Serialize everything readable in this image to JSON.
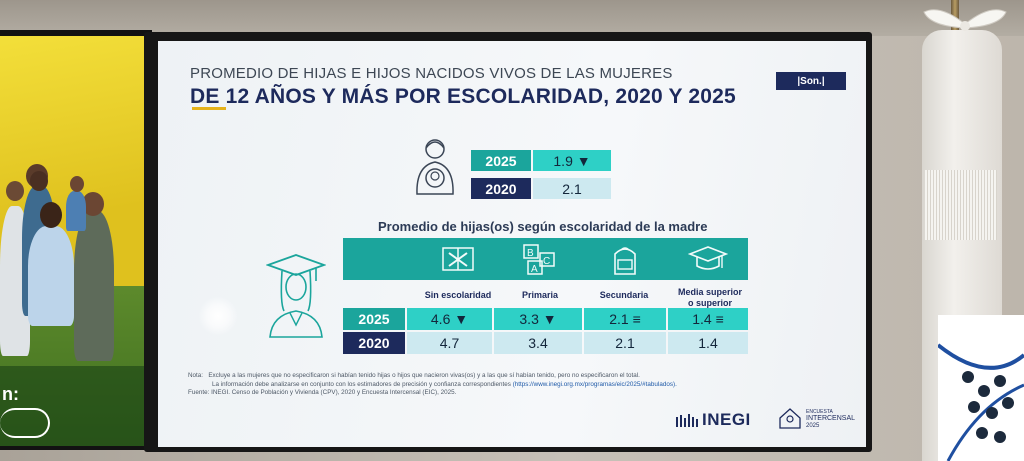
{
  "slide": {
    "title_line1": "PROMEDIO DE HIJAS E HIJOS NACIDOS VIVOS DE LAS MUJERES",
    "title_line2": "DE 12 AÑOS Y MÁS POR ESCOLARIDAD, 2020 Y 2025",
    "badge": "|Son.|"
  },
  "summary": [
    {
      "year": "2025",
      "value": "1.9 ▼"
    },
    {
      "year": "2020",
      "value": "2.1"
    }
  ],
  "table": {
    "title": "Promedio de hijas(os) según escolaridad de la madre",
    "columns": [
      "Sin escolaridad",
      "Primaria",
      "Secundaria",
      "Media superior",
      "o superior"
    ],
    "rows": [
      {
        "year": "2025",
        "cells": [
          "4.6 ▼",
          "3.3 ▼",
          "2.1 ≡",
          "1.4 ≡"
        ]
      },
      {
        "year": "2020",
        "cells": [
          "4.7",
          "3.4",
          "2.1",
          "1.4"
        ]
      }
    ]
  },
  "notes": {
    "label": "Nota:",
    "line1": "Excluye a las mujeres que no especificaron si habían tenido hijas o hijos que nacieron vivas(os) y a las que sí habían tenido, pero no especificaron el total.",
    "line2": "La información debe analizarse en conjunto con los estimadores de precisión y confianza correspondientes",
    "link": "(https://www.inegi.org.mx/programas/eic/2025/#tabulados).",
    "source": "Fuente: INEGI. Censo de Población y Vivienda (CPV), 2020 y Encuesta Intercensal (EIC), 2025."
  },
  "logos": {
    "inegi": "INEGI",
    "intercensal_top": "ENCUESTA",
    "intercensal_mid": "INTERCENSAL",
    "intercensal_year": "2025"
  },
  "left_screen": {
    "fragment": "n:"
  },
  "colors": {
    "teal": "#1ba59c",
    "teal_light": "#2ed0c6",
    "navy": "#1d2a5c",
    "pale_blue": "#cde9f0",
    "gold": "#e5b21b"
  }
}
